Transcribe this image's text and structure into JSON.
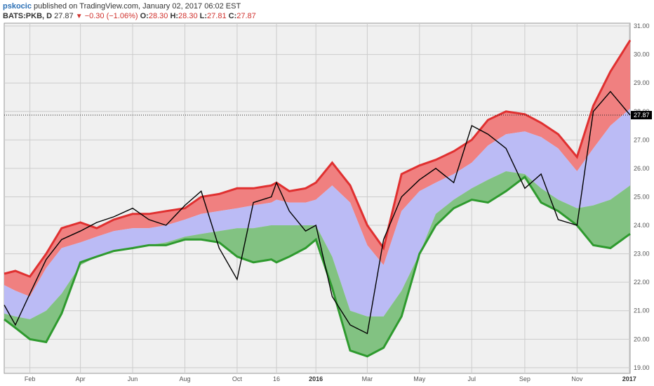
{
  "header": {
    "author": "pskocic",
    "published_text": "published on TradingView.com, January 02, 2017 06:02 EST",
    "symbol": "BATS:PKB, D",
    "last": "27.87",
    "change": "−0.30 (−1.06%)",
    "change_direction_icon": "triangle-down-icon",
    "ohlc": [
      {
        "label": "O:",
        "value": "28.30"
      },
      {
        "label": "H:",
        "value": "28.30"
      },
      {
        "label": "L:",
        "value": "27.81"
      },
      {
        "label": "C:",
        "value": "27.87"
      }
    ]
  },
  "colors": {
    "upper_band": "#f08080",
    "middle_band": "#bbbbf5",
    "lower_band": "#82c282",
    "upper_line": "#e03030",
    "lower_line": "#2e9a2e",
    "price_line": "#000000",
    "grid": "#cccccc",
    "background": "#f0f0f0",
    "last_price_badge": "#000000"
  },
  "chart_data": {
    "type": "line",
    "y_range": [
      18.8,
      31.1
    ],
    "x_range": [
      "2015-01-02",
      "2017-01-02"
    ],
    "grid": true,
    "y_ticks": [
      "31.00",
      "30.00",
      "29.00",
      "28.00",
      "27.00",
      "26.00",
      "25.00",
      "24.00",
      "23.00",
      "22.00",
      "21.00",
      "20.00",
      "19.00"
    ],
    "y_tick_values": [
      31,
      30,
      29,
      28,
      27,
      26,
      25,
      24,
      23,
      22,
      21,
      20,
      19
    ],
    "x_ticks": [
      {
        "label": "Feb",
        "date": "2015-02-01",
        "bold": false
      },
      {
        "label": "Apr",
        "date": "2015-04-01",
        "bold": false
      },
      {
        "label": "Jun",
        "date": "2015-06-01",
        "bold": false
      },
      {
        "label": "Aug",
        "date": "2015-08-01",
        "bold": false
      },
      {
        "label": "Oct",
        "date": "2015-10-01",
        "bold": false
      },
      {
        "label": "16",
        "date": "2015-11-16",
        "bold": false
      },
      {
        "label": "2016",
        "date": "2016-01-01",
        "bold": true
      },
      {
        "label": "Mar",
        "date": "2016-03-01",
        "bold": false
      },
      {
        "label": "May",
        "date": "2016-05-01",
        "bold": false
      },
      {
        "label": "Jul",
        "date": "2016-07-01",
        "bold": false
      },
      {
        "label": "Sep",
        "date": "2016-09-01",
        "bold": false
      },
      {
        "label": "Nov",
        "date": "2016-11-01",
        "bold": false
      },
      {
        "label": "2017",
        "date": "2017-01-01",
        "bold": true
      }
    ],
    "last_price_label": "27.87",
    "last_price_value": 27.87,
    "dates": [
      "2015-01-02",
      "2015-01-15",
      "2015-02-01",
      "2015-02-20",
      "2015-03-10",
      "2015-04-01",
      "2015-04-20",
      "2015-05-10",
      "2015-06-01",
      "2015-06-20",
      "2015-07-10",
      "2015-08-01",
      "2015-08-20",
      "2015-09-10",
      "2015-10-01",
      "2015-10-20",
      "2015-11-10",
      "2015-11-16",
      "2015-12-01",
      "2015-12-20",
      "2016-01-01",
      "2016-01-20",
      "2016-02-10",
      "2016-03-01",
      "2016-03-20",
      "2016-04-10",
      "2016-05-01",
      "2016-05-20",
      "2016-06-10",
      "2016-07-01",
      "2016-07-20",
      "2016-08-10",
      "2016-09-01",
      "2016-09-20",
      "2016-10-10",
      "2016-11-01",
      "2016-11-20",
      "2016-12-10",
      "2017-01-02"
    ],
    "series": [
      {
        "name": "",
        "role": "upper",
        "values": [
          22.3,
          22.4,
          22.2,
          23.0,
          23.9,
          24.1,
          23.9,
          24.2,
          24.4,
          24.4,
          24.5,
          24.6,
          25.0,
          25.1,
          25.3,
          25.3,
          25.4,
          25.5,
          25.2,
          25.3,
          25.5,
          26.2,
          25.4,
          24.0,
          23.2,
          25.8,
          26.1,
          26.3,
          26.6,
          27.0,
          27.7,
          28.0,
          27.9,
          27.6,
          27.2,
          26.4,
          28.2,
          29.4,
          30.5
        ]
      },
      {
        "name": "",
        "role": "middle_top",
        "values": [
          21.9,
          21.7,
          21.5,
          22.5,
          23.2,
          23.4,
          23.6,
          23.8,
          23.9,
          23.9,
          24.0,
          24.2,
          24.4,
          24.5,
          24.6,
          24.7,
          24.8,
          24.9,
          24.8,
          24.8,
          24.9,
          25.4,
          24.8,
          23.3,
          22.6,
          24.5,
          25.2,
          25.5,
          25.8,
          26.2,
          26.8,
          27.2,
          27.3,
          27.1,
          26.7,
          25.9,
          26.7,
          27.5,
          28.1
        ]
      },
      {
        "name": "",
        "role": "middle_bottom",
        "values": [
          20.9,
          20.8,
          20.7,
          21.0,
          21.6,
          22.6,
          22.9,
          23.1,
          23.2,
          23.3,
          23.4,
          23.6,
          23.7,
          23.8,
          23.9,
          23.9,
          24.0,
          24.0,
          24.0,
          24.0,
          24.0,
          22.9,
          21.0,
          20.8,
          20.8,
          21.7,
          23.0,
          24.4,
          24.9,
          25.3,
          25.6,
          25.9,
          25.8,
          25.3,
          24.9,
          24.6,
          24.7,
          24.9,
          25.4
        ]
      },
      {
        "name": "",
        "role": "lower",
        "values": [
          20.7,
          20.4,
          20.0,
          19.9,
          20.9,
          22.7,
          22.9,
          23.1,
          23.2,
          23.3,
          23.3,
          23.5,
          23.5,
          23.4,
          22.9,
          22.7,
          22.8,
          22.7,
          22.9,
          23.2,
          23.5,
          21.8,
          19.6,
          19.4,
          19.7,
          20.8,
          23.0,
          24.0,
          24.6,
          24.9,
          24.8,
          25.2,
          25.7,
          24.8,
          24.5,
          24.0,
          23.3,
          23.2,
          23.7
        ]
      },
      {
        "name": "",
        "role": "price",
        "values": [
          21.2,
          20.5,
          21.6,
          22.8,
          23.5,
          23.8,
          24.1,
          24.3,
          24.6,
          24.2,
          24.0,
          24.7,
          25.2,
          23.2,
          22.1,
          24.8,
          25.0,
          25.5,
          24.5,
          23.8,
          24.0,
          21.5,
          20.5,
          20.2,
          23.5,
          25.0,
          25.6,
          26.0,
          25.5,
          27.5,
          27.2,
          26.7,
          25.3,
          25.8,
          24.2,
          24.0,
          28.0,
          28.7,
          27.87
        ]
      }
    ]
  }
}
